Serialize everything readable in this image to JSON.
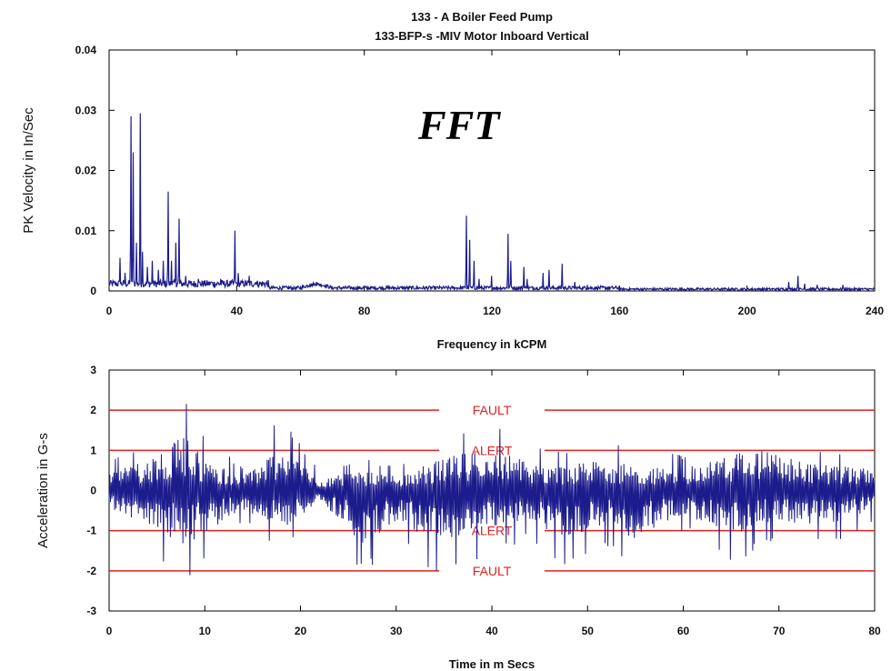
{
  "titles": {
    "line1": "133 - A Boiler Feed Pump",
    "line2": "133-BFP-s -MIV Motor Inboard Vertical"
  },
  "overlay_text": "FFT",
  "colors": {
    "trace": "#1c1c8c",
    "threshold": "#e02020",
    "axis": "#000000"
  },
  "chart_data": [
    {
      "type": "line",
      "name": "fft-spectrum",
      "xlabel": "Frequency in kCPM",
      "ylabel": "PK Velocity in In/Sec",
      "xlim": [
        0,
        240
      ],
      "ylim": [
        0,
        0.04
      ],
      "x_ticks": [
        0,
        40,
        80,
        120,
        160,
        200,
        240
      ],
      "x_tick_labels": [
        "0",
        "40",
        "80",
        "120",
        "160",
        "200",
        "240"
      ],
      "y_ticks": [
        0,
        0.01,
        0.02,
        0.03,
        0.04
      ],
      "y_tick_labels": [
        "0",
        "0.01",
        "0.02",
        "0.03",
        "0.04"
      ],
      "grid": false,
      "peaks": [
        {
          "x": 3.5,
          "y": 0.0055
        },
        {
          "x": 5,
          "y": 0.003
        },
        {
          "x": 6.8,
          "y": 0.029
        },
        {
          "x": 7.5,
          "y": 0.023
        },
        {
          "x": 8.5,
          "y": 0.008
        },
        {
          "x": 9.7,
          "y": 0.0295
        },
        {
          "x": 10.5,
          "y": 0.0065
        },
        {
          "x": 12,
          "y": 0.004
        },
        {
          "x": 13.5,
          "y": 0.005
        },
        {
          "x": 15.5,
          "y": 0.0035
        },
        {
          "x": 17,
          "y": 0.005
        },
        {
          "x": 18.5,
          "y": 0.0165
        },
        {
          "x": 19.5,
          "y": 0.005
        },
        {
          "x": 21,
          "y": 0.008
        },
        {
          "x": 22,
          "y": 0.012
        },
        {
          "x": 24,
          "y": 0.0025
        },
        {
          "x": 28,
          "y": 0.002
        },
        {
          "x": 32,
          "y": 0.0015
        },
        {
          "x": 35,
          "y": 0.002
        },
        {
          "x": 39.5,
          "y": 0.01
        },
        {
          "x": 40.5,
          "y": 0.003
        },
        {
          "x": 44,
          "y": 0.0025
        },
        {
          "x": 46,
          "y": 0.0015
        },
        {
          "x": 63,
          "y": 0.0012
        },
        {
          "x": 65,
          "y": 0.0015
        },
        {
          "x": 112,
          "y": 0.0125
        },
        {
          "x": 113,
          "y": 0.0085
        },
        {
          "x": 114.5,
          "y": 0.005
        },
        {
          "x": 116,
          "y": 0.002
        },
        {
          "x": 120,
          "y": 0.0025
        },
        {
          "x": 125,
          "y": 0.0095
        },
        {
          "x": 126,
          "y": 0.005
        },
        {
          "x": 130,
          "y": 0.004
        },
        {
          "x": 131,
          "y": 0.002
        },
        {
          "x": 136,
          "y": 0.003
        },
        {
          "x": 138,
          "y": 0.0035
        },
        {
          "x": 142,
          "y": 0.0045
        },
        {
          "x": 146,
          "y": 0.0015
        },
        {
          "x": 150,
          "y": 0.001
        },
        {
          "x": 213,
          "y": 0.0015
        },
        {
          "x": 216,
          "y": 0.0025
        },
        {
          "x": 218,
          "y": 0.0012
        },
        {
          "x": 222,
          "y": 0.001
        },
        {
          "x": 230,
          "y": 0.001
        }
      ]
    },
    {
      "type": "line",
      "name": "time-waveform",
      "xlabel": "Time in m Secs",
      "ylabel": "Acceleration in G-s",
      "xlim": [
        0,
        80
      ],
      "ylim": [
        -3,
        3
      ],
      "x_ticks": [
        0,
        10,
        20,
        30,
        40,
        50,
        60,
        70,
        80
      ],
      "x_tick_labels": [
        "0",
        "10",
        "20",
        "30",
        "40",
        "50",
        "60",
        "70",
        "80"
      ],
      "y_ticks": [
        -3,
        -2,
        -1,
        0,
        1,
        2,
        3
      ],
      "y_tick_labels": [
        "-3",
        "-2",
        "-1",
        "0",
        "1",
        "2",
        "3"
      ],
      "grid": false,
      "amplitude_envelope": [
        {
          "x": 0,
          "max": 0.8,
          "min": -0.8
        },
        {
          "x": 4,
          "max": 1.3,
          "min": -1.5
        },
        {
          "x": 8,
          "max": 2.3,
          "min": -2.3
        },
        {
          "x": 10,
          "max": 1.3,
          "min": -1.8
        },
        {
          "x": 14,
          "max": 0.6,
          "min": -0.8
        },
        {
          "x": 18,
          "max": 1.9,
          "min": -1.6
        },
        {
          "x": 22,
          "max": 0.5,
          "min": -0.5
        },
        {
          "x": 26.5,
          "max": 0.8,
          "min": -2.2
        },
        {
          "x": 30,
          "max": 0.6,
          "min": -1.3
        },
        {
          "x": 34,
          "max": 1.2,
          "min": -2.1
        },
        {
          "x": 39,
          "max": 1.8,
          "min": -1.7
        },
        {
          "x": 44,
          "max": 1.2,
          "min": -1.2
        },
        {
          "x": 47,
          "max": 1.0,
          "min": -2.0
        },
        {
          "x": 52,
          "max": 1.3,
          "min": -1.5
        },
        {
          "x": 55,
          "max": 1.0,
          "min": -2.0
        },
        {
          "x": 60,
          "max": 0.9,
          "min": -1.0
        },
        {
          "x": 66,
          "max": 1.6,
          "min": -1.9
        },
        {
          "x": 68,
          "max": 1.8,
          "min": -1.3
        },
        {
          "x": 73,
          "max": 1.1,
          "min": -1.4
        },
        {
          "x": 78,
          "max": 1.0,
          "min": -1.2
        },
        {
          "x": 80,
          "max": 0.8,
          "min": -0.8
        }
      ],
      "thresholds": [
        {
          "label": "FAULT",
          "value": 2
        },
        {
          "label": "ALERT",
          "value": 1
        },
        {
          "label": "ALERT",
          "value": -1
        },
        {
          "label": "FAULT",
          "value": -2
        }
      ]
    }
  ]
}
